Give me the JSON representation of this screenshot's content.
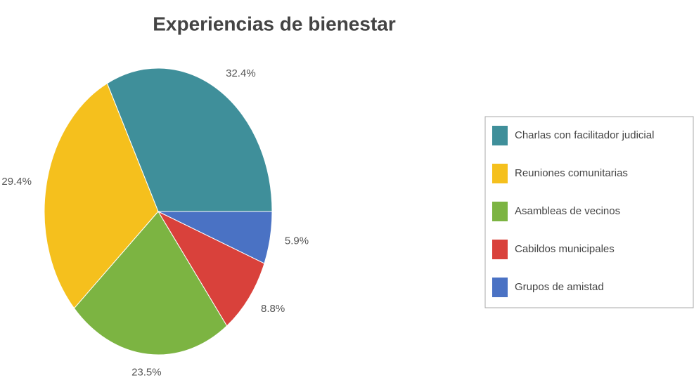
{
  "chart_data": {
    "type": "pie",
    "title": "Experiencias de bienestar",
    "categories": [
      "Charlas con facilitador judicial",
      "Reuniones comunitarias",
      "Asambleas de vecinos",
      "Cabildos municipales",
      "Grupos de amistad"
    ],
    "values": [
      32.4,
      29.4,
      23.5,
      8.8,
      5.9
    ],
    "value_labels": [
      "32.4%",
      "29.4%",
      "23.5%",
      "8.8%",
      "5.9%"
    ],
    "colors": [
      "#3f8f9a",
      "#f5c01d",
      "#7cb442",
      "#d9413b",
      "#4a72c4"
    ],
    "legend": "right"
  }
}
